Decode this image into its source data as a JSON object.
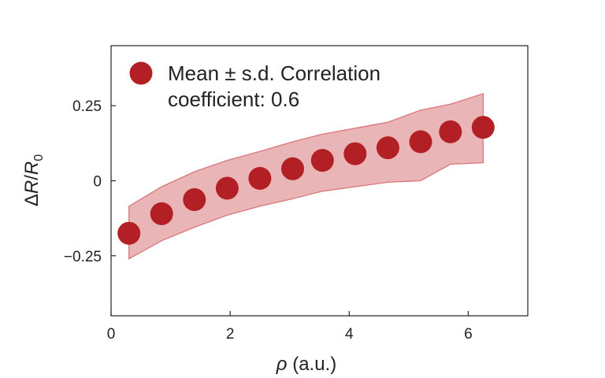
{
  "chart_data": {
    "type": "scatter",
    "x_axis": {
      "symbol": "ρ",
      "unit": " (a.u.)",
      "xlim": [
        0,
        7
      ],
      "ticks": [
        0,
        2,
        4,
        6
      ],
      "tick_labels": [
        "0",
        "2",
        "4",
        "6"
      ]
    },
    "y_axis": {
      "symbol_delta": "Δ",
      "symbol_r": "R",
      "slash": "/",
      "symbol_r0": "R",
      "subscript": "0",
      "ylim": [
        -0.45,
        0.45
      ],
      "ticks": [
        0.25,
        0,
        -0.25
      ],
      "tick_labels": [
        "0.25",
        "0",
        "−0.25"
      ]
    },
    "grid": false,
    "legend": {
      "placement": "top-left",
      "line1": "Mean ± s.d. Correlation",
      "line2": "coefficient: 0.6"
    },
    "series": [
      {
        "x": [
          0.3,
          0.85,
          1.4,
          1.95,
          2.5,
          3.05,
          3.55,
          4.1,
          4.65,
          5.2,
          5.7,
          6.25
        ],
        "mean": [
          -0.175,
          -0.11,
          -0.063,
          -0.025,
          0.008,
          0.04,
          0.068,
          0.09,
          0.11,
          0.13,
          0.163,
          0.178
        ],
        "upper": [
          -0.085,
          -0.02,
          0.03,
          0.068,
          0.098,
          0.13,
          0.155,
          0.175,
          0.195,
          0.235,
          0.255,
          0.29
        ],
        "lower": [
          -0.26,
          -0.2,
          -0.155,
          -0.115,
          -0.085,
          -0.06,
          -0.035,
          -0.02,
          -0.005,
          0.0,
          0.055,
          0.06
        ]
      }
    ],
    "colors": {
      "points": "#b21f24",
      "band_fill": "#e9b5b7",
      "band_edge": "#d9777b",
      "axis": "#222222"
    }
  }
}
